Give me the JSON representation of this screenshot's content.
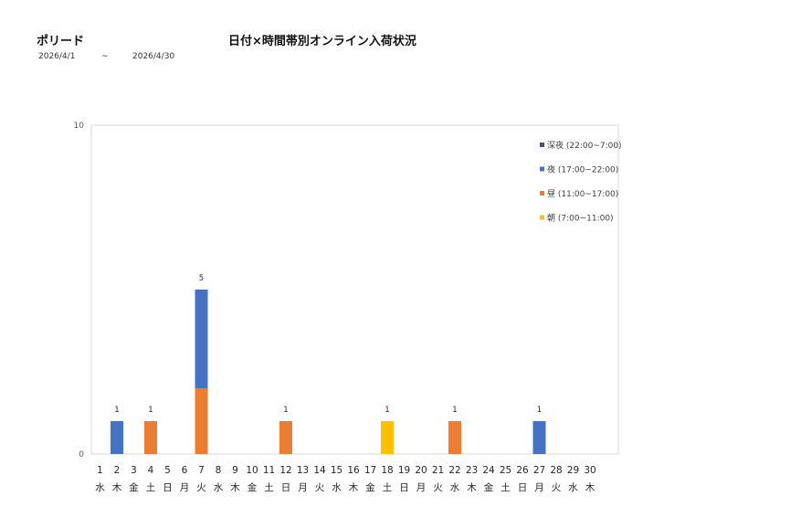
{
  "header": {
    "brand": "ポリード",
    "title": "日付×時間帯別オンライン入荷状況",
    "date_start": "2026/4/1",
    "date_sep": "~",
    "date_end": "2026/4/30"
  },
  "chart_data": {
    "type": "bar",
    "stacked": true,
    "title": "日付×時間帯別オンライン入荷状況",
    "ylim": [
      0,
      10
    ],
    "yticks": [
      0,
      10
    ],
    "grid": false,
    "legend_position": "top-right",
    "categories": [
      "1",
      "2",
      "3",
      "4",
      "5",
      "6",
      "7",
      "8",
      "9",
      "10",
      "11",
      "12",
      "13",
      "14",
      "15",
      "16",
      "17",
      "18",
      "19",
      "20",
      "21",
      "22",
      "23",
      "24",
      "25",
      "26",
      "27",
      "28",
      "29",
      "30"
    ],
    "weekdays": [
      "水",
      "木",
      "金",
      "土",
      "日",
      "月",
      "火",
      "水",
      "木",
      "金",
      "土",
      "日",
      "月",
      "火",
      "水",
      "木",
      "金",
      "土",
      "日",
      "月",
      "火",
      "水",
      "木",
      "金",
      "土",
      "日",
      "月",
      "火",
      "水",
      "木"
    ],
    "series": [
      {
        "name": "朝 (7:00~11:00)",
        "color": "#FFC000",
        "values": [
          0,
          0,
          0,
          0,
          0,
          0,
          0,
          0,
          0,
          0,
          0,
          0,
          0,
          0,
          0,
          0,
          0,
          1,
          0,
          0,
          0,
          0,
          0,
          0,
          0,
          0,
          0,
          0,
          0,
          0
        ]
      },
      {
        "name": "昼 (11:00~17:00)",
        "color": "#ED7D31",
        "values": [
          0,
          0,
          0,
          1,
          0,
          0,
          2,
          0,
          0,
          0,
          0,
          1,
          0,
          0,
          0,
          0,
          0,
          0,
          0,
          0,
          0,
          1,
          0,
          0,
          0,
          0,
          0,
          0,
          0,
          0
        ]
      },
      {
        "name": "夜 (17:00~22:00)",
        "color": "#4472C4",
        "values": [
          0,
          1,
          0,
          0,
          0,
          0,
          3,
          0,
          0,
          0,
          0,
          0,
          0,
          0,
          0,
          0,
          0,
          0,
          0,
          0,
          0,
          0,
          0,
          0,
          0,
          0,
          1,
          0,
          0,
          0
        ]
      },
      {
        "name": "深夜 (22:00~7:00)",
        "color": "#44546A",
        "values": [
          0,
          0,
          0,
          0,
          0,
          0,
          0,
          0,
          0,
          0,
          0,
          0,
          0,
          0,
          0,
          0,
          0,
          0,
          0,
          0,
          0,
          0,
          0,
          0,
          0,
          0,
          0,
          0,
          0,
          0
        ]
      }
    ],
    "legend_order": [
      "深夜 (22:00~7:00)",
      "夜 (17:00~22:00)",
      "昼 (11:00~17:00)",
      "朝 (7:00~11:00)"
    ]
  }
}
